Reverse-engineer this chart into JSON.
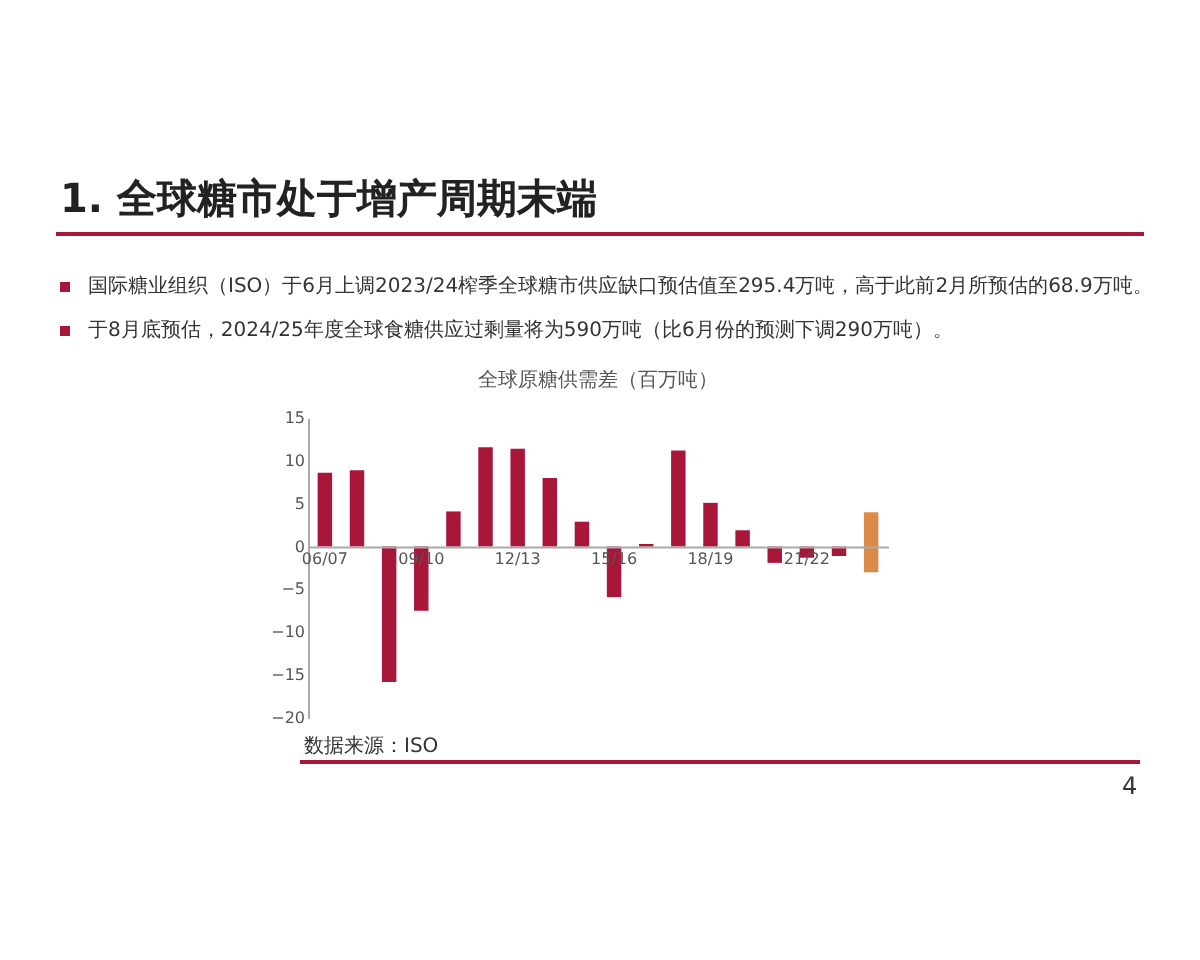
{
  "chart_data": {
    "type": "bar",
    "title": "1. 全球糖市处于增产周期末端",
    "subtitle": "全球原糖供需差（百万吨）",
    "categories": [
      "06/07",
      null,
      null,
      "09/10",
      null,
      null,
      "12/13",
      null,
      null,
      "15/16",
      null,
      null,
      "18/19",
      null,
      null,
      "21/22",
      null,
      null
    ],
    "values": [
      8.6,
      8.9,
      -15.8,
      -7.5,
      4.1,
      11.6,
      11.4,
      8.0,
      2.9,
      -5.9,
      0.3,
      11.2,
      5.1,
      1.9,
      -1.9,
      -1.3,
      -1.1,
      7.0
    ],
    "base": [
      0,
      0,
      0,
      0,
      0,
      0,
      0,
      0,
      0,
      0,
      0,
      0,
      0,
      0,
      0,
      0,
      0,
      -3.0
    ],
    "colors": [
      "#a8163a",
      "#a8163a",
      "#a8163a",
      "#a8163a",
      "#a8163a",
      "#a8163a",
      "#a8163a",
      "#a8163a",
      "#a8163a",
      "#a8163a",
      "#a8163a",
      "#a8163a",
      "#a8163a",
      "#a8163a",
      "#a8163a",
      "#a8163a",
      "#a8163a",
      "#dc8a4a"
    ],
    "ylim": [
      -20,
      15
    ],
    "yticks": [
      -20,
      -15,
      -10,
      -5,
      0,
      5,
      10,
      15
    ],
    "annotations": [
      "国际糖业组织（ISO）于6月上调2023/24榨季全球糖市供应缺口预估值至295.4万吨，高于此前2月所预估的68.9万吨。",
      "于8月底预估，2024/25年度全球食糖供应过剩量将为590万吨（比6月份的预测下调290万吨）。",
      "数据来源：ISO",
      "4"
    ]
  }
}
